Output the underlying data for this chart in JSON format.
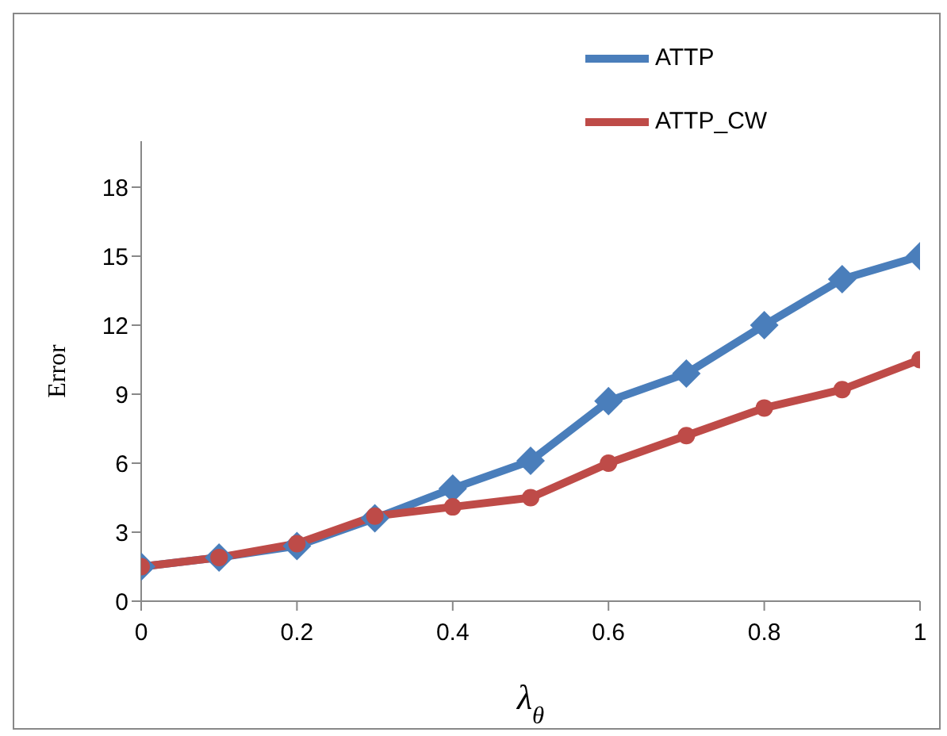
{
  "chart_data": {
    "type": "line",
    "xlabel": "λ$_{θ}$",
    "ylabel": "Error",
    "x": [
      0,
      0.1,
      0.2,
      0.3,
      0.4,
      0.5,
      0.6,
      0.7,
      0.8,
      0.9,
      1
    ],
    "series": [
      {
        "name": "ATTP",
        "color": "#4a7ebb",
        "marker": "diamond",
        "values": [
          1.5,
          1.9,
          2.4,
          3.6,
          4.9,
          6.1,
          8.7,
          9.9,
          12,
          14,
          15
        ]
      },
      {
        "name": "ATTP_CW",
        "color": "#be4b48",
        "marker": "circle",
        "values": [
          1.5,
          1.9,
          2.5,
          3.7,
          4.1,
          4.5,
          6,
          7.2,
          8.4,
          9.2,
          10.5
        ]
      }
    ],
    "xlim": [
      0,
      1
    ],
    "xticks": [
      0,
      0.2,
      0.4,
      0.6,
      0.8,
      1
    ],
    "ylim": [
      0,
      20
    ],
    "yticks": [
      0,
      3,
      6,
      9,
      12,
      15,
      18
    ],
    "grid": false,
    "legend": "top right"
  }
}
